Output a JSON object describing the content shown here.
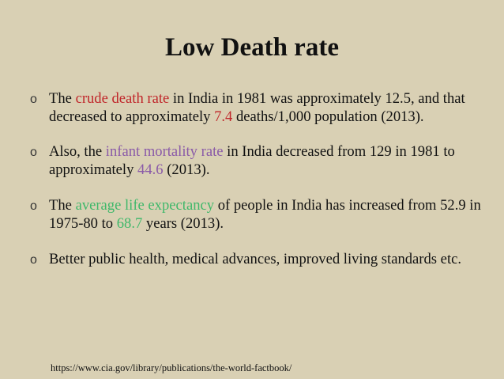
{
  "slide": {
    "title": "Low Death rate",
    "bullet_marker": "o",
    "bullets": [
      {
        "before": "The ",
        "highlight1": "crude death rate",
        "middle": " in India in 1981 was approximately 12.5, and that decreased to approximately ",
        "highlight2": "7.4",
        "after": " deaths/1,000 population (2013)."
      },
      {
        "before": "Also, the ",
        "highlight1": "infant mortality rate",
        "middle": " in India decreased from 129 in 1981 to approximately ",
        "highlight2": "44.6",
        "after": " (2013)."
      },
      {
        "before": "The ",
        "highlight1": "average life expectancy",
        "middle": " of people in India has increased from 52.9 in 1975-80 to ",
        "highlight2": "68.7",
        "after": " years (2013)."
      },
      {
        "text": "Better public health, medical advances, improved living standards etc."
      }
    ],
    "source": "https://www.cia.gov/library/publications/the-world-factbook/"
  },
  "colors": {
    "background": "#d9d0b4",
    "red": "#c0262a",
    "purple": "#8a5aa8",
    "green": "#3fb86a"
  }
}
